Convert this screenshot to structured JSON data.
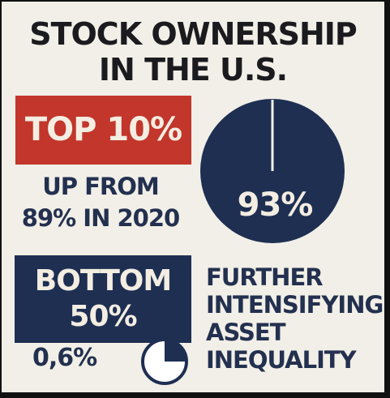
{
  "title": {
    "line1": "STOCK OWNERSHIP",
    "line2": "IN THE U.S."
  },
  "top_section": {
    "label": "TOP 10%",
    "note_line1": "UP FROM",
    "note_line2": "89% IN 2020",
    "share_label": "93%",
    "share_value": 93
  },
  "bottom_section": {
    "label_line1": "BOTTOM",
    "label_line2": "50%",
    "share_label": "0,6%",
    "note_line1": "FURTHER",
    "note_line2": "INTENSIFYING",
    "note_line3": "ASSET",
    "note_line4": "INEQUALITY"
  },
  "colors": {
    "background": "#f1efe7",
    "red": "#c2362b",
    "navy": "#1e2f52",
    "text_dark": "#1b1b1f"
  },
  "icons": {
    "big_pie": "pie-chart-icon",
    "small_pie": "pie-chart-icon"
  }
}
